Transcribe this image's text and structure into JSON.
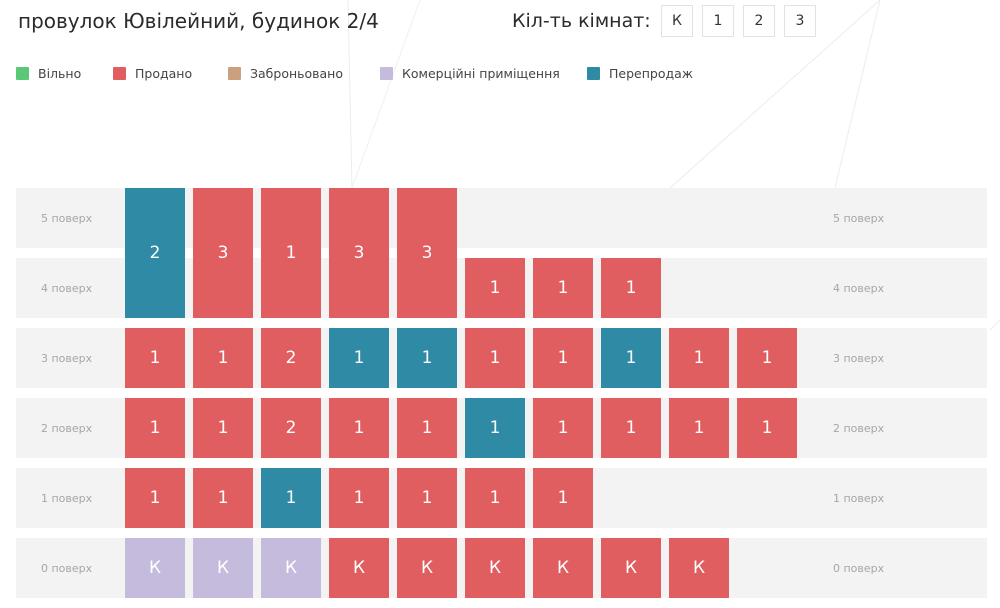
{
  "header": {
    "address": "провулок Ювілейний, будинок 2/4",
    "rooms_label": "Кіл-ть кімнат:",
    "room_filters": [
      "К",
      "1",
      "2",
      "3"
    ]
  },
  "colors": {
    "free": "#5bc877",
    "sold": "#e05d60",
    "reserved": "#caa07f",
    "commercial": "#c5bbdd",
    "resale": "#2f8aa6"
  },
  "legend": [
    {
      "label": "Вільно",
      "status": "free"
    },
    {
      "label": "Продано",
      "status": "sold"
    },
    {
      "label": "Заброньовано",
      "status": "reserved"
    },
    {
      "label": "Комерційні приміщення",
      "status": "commercial"
    },
    {
      "label": "Перепродаж",
      "status": "resale"
    }
  ],
  "floors": [
    {
      "number": 5,
      "label": "5 поверх"
    },
    {
      "number": 4,
      "label": "4 поверх"
    },
    {
      "number": 3,
      "label": "3 поверх"
    },
    {
      "number": 2,
      "label": "2 поверх"
    },
    {
      "number": 1,
      "label": "1 поверх"
    },
    {
      "number": 0,
      "label": "0 поверх"
    }
  ],
  "apartments": [
    {
      "floor": 5,
      "floor_span": 2,
      "column": 1,
      "rooms": "2",
      "status": "resale"
    },
    {
      "floor": 5,
      "floor_span": 2,
      "column": 2,
      "rooms": "3",
      "status": "sold"
    },
    {
      "floor": 5,
      "floor_span": 2,
      "column": 3,
      "rooms": "1",
      "status": "sold"
    },
    {
      "floor": 5,
      "floor_span": 2,
      "column": 4,
      "rooms": "3",
      "status": "sold"
    },
    {
      "floor": 5,
      "floor_span": 2,
      "column": 5,
      "rooms": "3",
      "status": "sold"
    },
    {
      "floor": 4,
      "floor_span": 1,
      "column": 6,
      "rooms": "1",
      "status": "sold"
    },
    {
      "floor": 4,
      "floor_span": 1,
      "column": 7,
      "rooms": "1",
      "status": "sold"
    },
    {
      "floor": 4,
      "floor_span": 1,
      "column": 8,
      "rooms": "1",
      "status": "sold"
    },
    {
      "floor": 3,
      "floor_span": 1,
      "column": 1,
      "rooms": "1",
      "status": "sold"
    },
    {
      "floor": 3,
      "floor_span": 1,
      "column": 2,
      "rooms": "1",
      "status": "sold"
    },
    {
      "floor": 3,
      "floor_span": 1,
      "column": 3,
      "rooms": "2",
      "status": "sold"
    },
    {
      "floor": 3,
      "floor_span": 1,
      "column": 4,
      "rooms": "1",
      "status": "resale"
    },
    {
      "floor": 3,
      "floor_span": 1,
      "column": 5,
      "rooms": "1",
      "status": "resale"
    },
    {
      "floor": 3,
      "floor_span": 1,
      "column": 6,
      "rooms": "1",
      "status": "sold"
    },
    {
      "floor": 3,
      "floor_span": 1,
      "column": 7,
      "rooms": "1",
      "status": "sold"
    },
    {
      "floor": 3,
      "floor_span": 1,
      "column": 8,
      "rooms": "1",
      "status": "resale"
    },
    {
      "floor": 3,
      "floor_span": 1,
      "column": 9,
      "rooms": "1",
      "status": "sold"
    },
    {
      "floor": 3,
      "floor_span": 1,
      "column": 10,
      "rooms": "1",
      "status": "sold"
    },
    {
      "floor": 2,
      "floor_span": 1,
      "column": 1,
      "rooms": "1",
      "status": "sold"
    },
    {
      "floor": 2,
      "floor_span": 1,
      "column": 2,
      "rooms": "1",
      "status": "sold"
    },
    {
      "floor": 2,
      "floor_span": 1,
      "column": 3,
      "rooms": "2",
      "status": "sold"
    },
    {
      "floor": 2,
      "floor_span": 1,
      "column": 4,
      "rooms": "1",
      "status": "sold"
    },
    {
      "floor": 2,
      "floor_span": 1,
      "column": 5,
      "rooms": "1",
      "status": "sold"
    },
    {
      "floor": 2,
      "floor_span": 1,
      "column": 6,
      "rooms": "1",
      "status": "resale"
    },
    {
      "floor": 2,
      "floor_span": 1,
      "column": 7,
      "rooms": "1",
      "status": "sold"
    },
    {
      "floor": 2,
      "floor_span": 1,
      "column": 8,
      "rooms": "1",
      "status": "sold"
    },
    {
      "floor": 2,
      "floor_span": 1,
      "column": 9,
      "rooms": "1",
      "status": "sold"
    },
    {
      "floor": 2,
      "floor_span": 1,
      "column": 10,
      "rooms": "1",
      "status": "sold"
    },
    {
      "floor": 1,
      "floor_span": 1,
      "column": 1,
      "rooms": "1",
      "status": "sold"
    },
    {
      "floor": 1,
      "floor_span": 1,
      "column": 2,
      "rooms": "1",
      "status": "sold"
    },
    {
      "floor": 1,
      "floor_span": 1,
      "column": 3,
      "rooms": "1",
      "status": "resale"
    },
    {
      "floor": 1,
      "floor_span": 1,
      "column": 4,
      "rooms": "1",
      "status": "sold"
    },
    {
      "floor": 1,
      "floor_span": 1,
      "column": 5,
      "rooms": "1",
      "status": "sold"
    },
    {
      "floor": 1,
      "floor_span": 1,
      "column": 6,
      "rooms": "1",
      "status": "sold"
    },
    {
      "floor": 1,
      "floor_span": 1,
      "column": 7,
      "rooms": "1",
      "status": "sold"
    },
    {
      "floor": 0,
      "floor_span": 1,
      "column": 1,
      "rooms": "К",
      "status": "commercial"
    },
    {
      "floor": 0,
      "floor_span": 1,
      "column": 2,
      "rooms": "К",
      "status": "commercial"
    },
    {
      "floor": 0,
      "floor_span": 1,
      "column": 3,
      "rooms": "К",
      "status": "commercial"
    },
    {
      "floor": 0,
      "floor_span": 1,
      "column": 4,
      "rooms": "К",
      "status": "sold"
    },
    {
      "floor": 0,
      "floor_span": 1,
      "column": 5,
      "rooms": "К",
      "status": "sold"
    },
    {
      "floor": 0,
      "floor_span": 1,
      "column": 6,
      "rooms": "К",
      "status": "sold"
    },
    {
      "floor": 0,
      "floor_span": 1,
      "column": 7,
      "rooms": "К",
      "status": "sold"
    },
    {
      "floor": 0,
      "floor_span": 1,
      "column": 8,
      "rooms": "К",
      "status": "sold"
    },
    {
      "floor": 0,
      "floor_span": 1,
      "column": 9,
      "rooms": "К",
      "status": "sold"
    }
  ]
}
